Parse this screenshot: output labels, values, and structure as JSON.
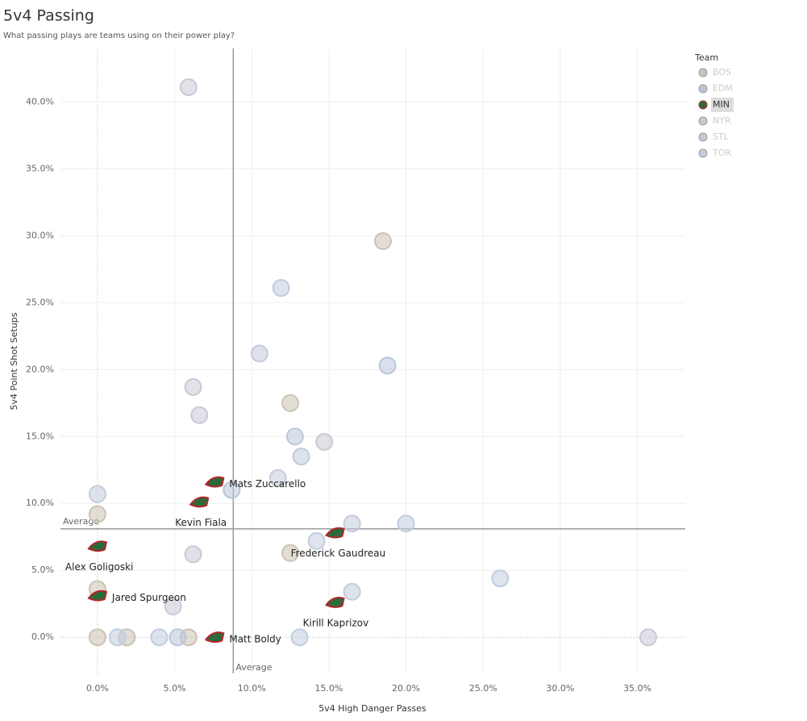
{
  "chart_data": {
    "type": "scatter",
    "title": "5v4 Passing",
    "subtitle": "What passing plays are teams using on their power play?",
    "x_label": "5v4 High Danger Passes",
    "y_label": "5v4 Point Shot Setups",
    "legend_title": "Team",
    "legend_position": "right",
    "highlight": "MIN",
    "grid": true,
    "xlim": [
      -2.4,
      38.1
    ],
    "ylim": [
      -2.7,
      44.0
    ],
    "xticks": [
      {
        "value": 0,
        "label": "0.0%"
      },
      {
        "value": 5,
        "label": "5.0%"
      },
      {
        "value": 10,
        "label": "10.0%"
      },
      {
        "value": 15,
        "label": "15.0%"
      },
      {
        "value": 20,
        "label": "20.0%"
      },
      {
        "value": 25,
        "label": "25.0%"
      },
      {
        "value": 30,
        "label": "30.0%"
      },
      {
        "value": 35,
        "label": "35.0%"
      }
    ],
    "yticks": [
      {
        "value": 0,
        "label": "0.0%"
      },
      {
        "value": 5,
        "label": "5.0%"
      },
      {
        "value": 10,
        "label": "10.0%"
      },
      {
        "value": 15,
        "label": "15.0%"
      },
      {
        "value": 20,
        "label": "20.0%"
      },
      {
        "value": 25,
        "label": "25.0%"
      },
      {
        "value": 30,
        "label": "30.0%"
      },
      {
        "value": 35,
        "label": "35.0%"
      },
      {
        "value": 40,
        "label": "40.0%"
      }
    ],
    "reference_lines": [
      {
        "axis": "x",
        "value": 8.8,
        "label": "Average"
      },
      {
        "axis": "y",
        "value": 8.1,
        "label": "Average"
      }
    ],
    "series": [
      {
        "name": "BOS",
        "color": "#cbc3b3",
        "x": [
          18.5,
          12.5,
          0,
          12.5,
          0,
          0,
          1.9,
          5.9
        ],
        "y": [
          29.6,
          17.5,
          9.2,
          6.3,
          3.6,
          0,
          0,
          0
        ]
      },
      {
        "name": "EDM",
        "color": "#b9c7da",
        "x": [
          18.8,
          12.8,
          8.7,
          5.2
        ],
        "y": [
          20.3,
          15.0,
          11.0,
          0
        ]
      },
      {
        "name": "MIN",
        "color": "#2d6a3a",
        "x": [
          7.6,
          6.6,
          0,
          0,
          7.6,
          15.4,
          15.4
        ],
        "y": [
          11.6,
          10.1,
          6.8,
          3.1,
          0,
          2.6,
          7.8
        ],
        "labels": [
          "Mats Zuccarello",
          "Kevin Fiala",
          "Alex Goligoski",
          "Jared Spurgeon",
          "Matt Boldy",
          "Kirill Kaprizov",
          "Frederick Gaudreau"
        ]
      },
      {
        "name": "NYR",
        "color": "#c9c9d6",
        "x": [
          5.9,
          6.2,
          6.6,
          14.7,
          6.2,
          4.9,
          35.7
        ],
        "y": [
          41.1,
          18.7,
          16.6,
          14.6,
          6.2,
          2.3,
          0
        ]
      },
      {
        "name": "STL",
        "color": "#c3cbdb",
        "x": [
          10.5,
          13.2,
          11.7,
          0,
          16.5,
          16.5
        ],
        "y": [
          21.2,
          13.5,
          11.9,
          10.7,
          8.5,
          3.4
        ]
      },
      {
        "name": "TOR",
        "color": "#c1cde0",
        "x": [
          11.9,
          20.0,
          14.2,
          26.1,
          1.3,
          4.0,
          13.1
        ],
        "y": [
          26.1,
          8.5,
          7.2,
          4.4,
          0,
          0,
          0
        ]
      }
    ]
  }
}
